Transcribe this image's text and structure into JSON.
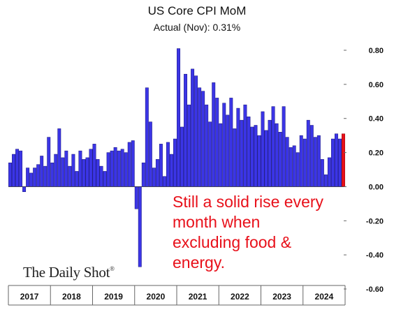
{
  "header": {
    "title": "US Core CPI MoM",
    "subtitle": "Actual (Nov):  0.31%"
  },
  "annotation": {
    "lines": [
      "Still a solid rise every",
      "month when",
      "excluding food &",
      "energy."
    ]
  },
  "branding": {
    "logo": "The Daily Shot",
    "mark": "®"
  },
  "colors": {
    "bar": "#3b35e6",
    "bar_stroke": "#15127a",
    "highlight": "#e8101a"
  },
  "chart_data": {
    "type": "bar",
    "title": "US Core CPI MoM",
    "subtitle": "Actual (Nov):  0.31%",
    "xlabel": "",
    "ylabel": "",
    "ylim": [
      -0.6,
      0.8
    ],
    "yticks": [
      "0.80",
      "0.60",
      "0.40",
      "0.20",
      "0.00",
      "-0.20",
      "-0.40",
      "-0.60"
    ],
    "ytick_values": [
      0.8,
      0.6,
      0.4,
      0.2,
      0.0,
      -0.2,
      -0.4,
      -0.6
    ],
    "years": [
      "2017",
      "2018",
      "2019",
      "2020",
      "2021",
      "2022",
      "2023",
      "2024"
    ],
    "y_axis_side": "right",
    "grid": false,
    "highlight_last": true,
    "values": [
      0.14,
      0.19,
      0.22,
      0.21,
      -0.03,
      0.11,
      0.08,
      0.11,
      0.13,
      0.18,
      0.12,
      0.29,
      0.14,
      0.19,
      0.34,
      0.17,
      0.21,
      0.12,
      0.19,
      0.09,
      0.21,
      0.16,
      0.17,
      0.22,
      0.25,
      0.16,
      0.12,
      0.09,
      0.2,
      0.21,
      0.23,
      0.21,
      0.22,
      0.2,
      0.26,
      0.27,
      -0.13,
      -0.47,
      0.14,
      0.58,
      0.38,
      0.11,
      0.16,
      0.25,
      0.06,
      0.26,
      0.19,
      0.28,
      0.81,
      0.35,
      0.66,
      0.48,
      0.69,
      0.65,
      0.58,
      0.56,
      0.48,
      0.38,
      0.61,
      0.52,
      0.37,
      0.49,
      0.42,
      0.52,
      0.34,
      0.46,
      0.39,
      0.48,
      0.41,
      0.35,
      0.36,
      0.3,
      0.44,
      0.33,
      0.39,
      0.47,
      0.37,
      0.32,
      0.47,
      0.29,
      0.23,
      0.24,
      0.2,
      0.3,
      0.28,
      0.39,
      0.36,
      0.29,
      0.3,
      0.16,
      0.07,
      0.17,
      0.28,
      0.31,
      0.28,
      0.31
    ]
  }
}
